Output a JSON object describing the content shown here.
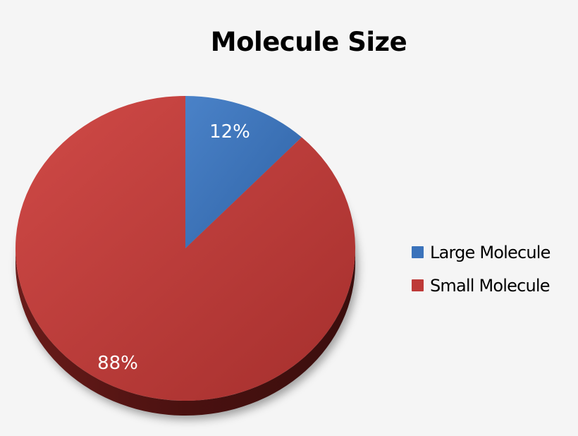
{
  "chart_data": {
    "type": "pie",
    "title": "Molecule Size",
    "categories": [
      "Large Molecule",
      "Small Molecule"
    ],
    "values": [
      12,
      88
    ],
    "labels": [
      "12%",
      "88%"
    ],
    "colors": [
      "#3b73bb",
      "#be3a38"
    ],
    "style": "3d",
    "legend": "right"
  }
}
